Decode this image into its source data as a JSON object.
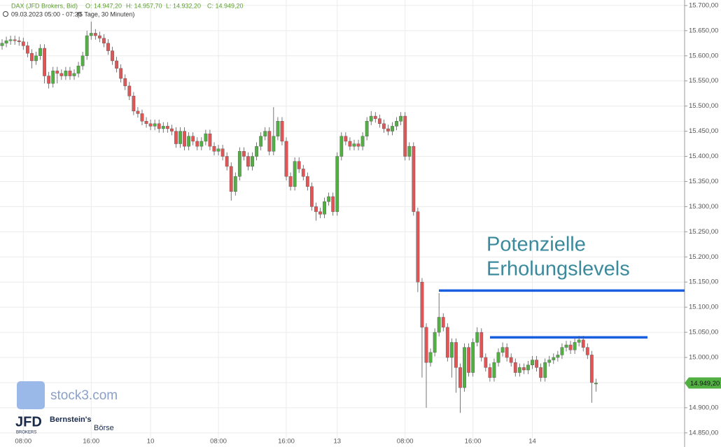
{
  "chart_data": {
    "type": "candlestick",
    "title": "DAX (JFD Brokers, Bid)",
    "ohlc_labels": [
      "O: 14.947,20",
      "H: 14.957,70",
      "L: 14.932,20",
      "C: 14.949,20"
    ],
    "subtitle": "09.03.2023 05:00 - 07:30",
    "period": "(5 Tage, 30 Minuten)",
    "categories": [
      null,
      null,
      null,
      null,
      null,
      "08:00",
      null,
      null,
      null,
      null,
      null,
      null,
      null,
      null,
      null,
      null,
      null,
      null,
      null,
      null,
      null,
      "16:00",
      null,
      null,
      null,
      null,
      null,
      null,
      null,
      null,
      null,
      null,
      null,
      null,
      null,
      "10",
      null,
      null,
      null,
      null,
      null,
      null,
      null,
      null,
      null,
      null,
      null,
      null,
      null,
      null,
      null,
      "08:00",
      null,
      null,
      null,
      null,
      null,
      null,
      null,
      null,
      null,
      null,
      null,
      null,
      null,
      null,
      null,
      "16:00",
      null,
      null,
      null,
      null,
      null,
      null,
      null,
      null,
      null,
      null,
      null,
      "13",
      null,
      null,
      null,
      null,
      null,
      null,
      null,
      null,
      null,
      null,
      null,
      null,
      null,
      null,
      null,
      "08:00",
      null,
      null,
      null,
      null,
      null,
      null,
      null,
      null,
      null,
      null,
      null,
      null,
      null,
      null,
      null,
      "16:00",
      null,
      null,
      null,
      null,
      null,
      null,
      null,
      null,
      null,
      null,
      null,
      null,
      null,
      "14",
      null,
      null,
      null,
      null,
      null,
      null,
      null,
      null,
      null,
      null,
      null,
      null,
      null,
      null,
      null
    ],
    "open": [
      15620,
      15625,
      15630,
      15632,
      15630,
      15628,
      15620,
      15605,
      15590,
      15600,
      15615,
      15560,
      15545,
      15570,
      15565,
      15560,
      15570,
      15560,
      15565,
      15580,
      15600,
      15640,
      15645,
      15640,
      15635,
      15625,
      15610,
      15590,
      15575,
      15555,
      15540,
      15520,
      15490,
      15485,
      15470,
      15465,
      15460,
      15465,
      15455,
      15460,
      15455,
      15450,
      15425,
      15450,
      15420,
      15440,
      15430,
      15420,
      15430,
      15445,
      15420,
      15410,
      15415,
      15400,
      15380,
      15330,
      15360,
      15410,
      15400,
      15380,
      15400,
      15420,
      15440,
      15450,
      15410,
      15440,
      15470,
      15430,
      15360,
      15340,
      15390,
      15375,
      15360,
      15340,
      15300,
      15290,
      15285,
      15310,
      15320,
      15290,
      15400,
      15440,
      15430,
      15420,
      15425,
      15420,
      15440,
      15470,
      15480,
      15475,
      15465,
      15455,
      15450,
      15460,
      15470,
      15480,
      15400,
      15420,
      15290,
      15150,
      15060,
      14990,
      15010,
      15050,
      15080,
      15060,
      15000,
      15030,
      14980,
      14940,
      15020,
      14970,
      15030,
      15050,
      15000,
      14980,
      14960,
      14990,
      15010,
      15020,
      15000,
      14990,
      14970,
      14980,
      14975,
      14985,
      14995,
      14980,
      14960,
      14990,
      14995,
      15000,
      15005,
      15020,
      15025,
      15015,
      15030,
      15035,
      15020,
      15005,
      14947.2
    ],
    "high": [
      15633,
      15638,
      15640,
      15640,
      15638,
      15636,
      15628,
      15613,
      15608,
      15623,
      15623,
      15568,
      15578,
      15578,
      15573,
      15578,
      15578,
      15573,
      15588,
      15608,
      15650,
      15668,
      15653,
      15648,
      15643,
      15633,
      15618,
      15598,
      15583,
      15563,
      15548,
      15528,
      15498,
      15493,
      15478,
      15473,
      15473,
      15473,
      15468,
      15468,
      15463,
      15458,
      15458,
      15458,
      15448,
      15448,
      15438,
      15438,
      15453,
      15453,
      15428,
      15423,
      15423,
      15408,
      15388,
      15368,
      15418,
      15418,
      15408,
      15408,
      15428,
      15448,
      15458,
      15458,
      15498,
      15478,
      15478,
      15438,
      15368,
      15398,
      15398,
      15383,
      15368,
      15348,
      15308,
      15298,
      15318,
      15328,
      15328,
      15408,
      15448,
      15448,
      15438,
      15433,
      15433,
      15448,
      15478,
      15490,
      15488,
      15483,
      15473,
      15463,
      15468,
      15478,
      15488,
      15488,
      15428,
      15428,
      15298,
      15158,
      15068,
      15018,
      15058,
      15128,
      15088,
      15068,
      15038,
      15038,
      14988,
      15028,
      15028,
      15038,
      15060,
      15058,
      15008,
      14988,
      14998,
      15018,
      15030,
      15028,
      15008,
      14998,
      14988,
      14988,
      14993,
      15003,
      15003,
      14988,
      14998,
      15003,
      15008,
      15013,
      15028,
      15033,
      15033,
      15038,
      15043,
      15043,
      15028,
      15013,
      14957.7
    ],
    "low": [
      15612,
      15617,
      15622,
      15622,
      15620,
      15612,
      15597,
      15575,
      15582,
      15592,
      15545,
      15535,
      15537,
      15545,
      15552,
      15552,
      15552,
      15552,
      15557,
      15572,
      15592,
      15632,
      15632,
      15627,
      15617,
      15602,
      15582,
      15567,
      15547,
      15532,
      15512,
      15482,
      15477,
      15462,
      15457,
      15452,
      15452,
      15447,
      15447,
      15447,
      15442,
      15417,
      15417,
      15412,
      15412,
      15422,
      15412,
      15412,
      15422,
      15412,
      15402,
      15402,
      15392,
      15372,
      15312,
      15322,
      15352,
      15392,
      15372,
      15372,
      15392,
      15412,
      15432,
      15402,
      15402,
      15432,
      15422,
      15352,
      15332,
      15332,
      15367,
      15352,
      15332,
      15292,
      15272,
      15277,
      15277,
      15302,
      15282,
      15282,
      15392,
      15422,
      15412,
      15412,
      15412,
      15412,
      15432,
      15462,
      15467,
      15457,
      15447,
      15442,
      15442,
      15452,
      15462,
      15392,
      15392,
      15282,
      15130,
      14960,
      14900,
      14982,
      15002,
      15042,
      15052,
      14992,
      14960,
      14930,
      14890,
      14932,
      14962,
      14962,
      15022,
      14992,
      14972,
      14952,
      14952,
      14982,
      15002,
      14992,
      14982,
      14962,
      14962,
      14967,
      14967,
      14977,
      14972,
      14952,
      14952,
      14982,
      14987,
      14992,
      14997,
      15012,
      15007,
      15007,
      15022,
      15012,
      14997,
      14910,
      14932.2
    ],
    "close": [
      15625,
      15630,
      15632,
      15630,
      15628,
      15620,
      15605,
      15590,
      15600,
      15615,
      15560,
      15545,
      15570,
      15565,
      15560,
      15570,
      15560,
      15565,
      15580,
      15600,
      15640,
      15645,
      15640,
      15635,
      15625,
      15610,
      15590,
      15575,
      15555,
      15540,
      15520,
      15490,
      15485,
      15470,
      15465,
      15460,
      15465,
      15455,
      15460,
      15455,
      15450,
      15425,
      15450,
      15420,
      15440,
      15430,
      15420,
      15430,
      15445,
      15420,
      15410,
      15415,
      15400,
      15380,
      15330,
      15360,
      15410,
      15400,
      15380,
      15400,
      15420,
      15440,
      15450,
      15410,
      15440,
      15470,
      15430,
      15360,
      15340,
      15390,
      15375,
      15360,
      15340,
      15300,
      15290,
      15285,
      15310,
      15320,
      15290,
      15400,
      15440,
      15430,
      15420,
      15425,
      15420,
      15440,
      15470,
      15480,
      15475,
      15465,
      15455,
      15450,
      15460,
      15470,
      15480,
      15400,
      15420,
      15290,
      15150,
      15060,
      14990,
      15010,
      15050,
      15080,
      15060,
      15000,
      15030,
      14980,
      14940,
      15020,
      14970,
      15030,
      15050,
      15000,
      14980,
      14960,
      14990,
      15010,
      15020,
      15000,
      14990,
      14970,
      14980,
      14975,
      14985,
      14995,
      14980,
      14960,
      14990,
      14995,
      15000,
      15005,
      15020,
      15025,
      15015,
      15030,
      15035,
      15020,
      15005,
      14950,
      14949.2
    ],
    "up_color": "#52b043",
    "down_color": "#e05555",
    "ylim": [
      14840,
      15711
    ],
    "yticks": [
      {
        "value": 15700,
        "label": "15.700,00"
      },
      {
        "value": 15650,
        "label": "15.650,00"
      },
      {
        "value": 15600,
        "label": "15.600,00"
      },
      {
        "value": 15550,
        "label": "15.550,00"
      },
      {
        "value": 15500,
        "label": "15.500,00"
      },
      {
        "value": 15450,
        "label": "15.450,00"
      },
      {
        "value": 15400,
        "label": "15.400,00"
      },
      {
        "value": 15350,
        "label": "15.350,00"
      },
      {
        "value": 15300,
        "label": "15.300,00"
      },
      {
        "value": 15250,
        "label": "15.250,00"
      },
      {
        "value": 15200,
        "label": "15.200,00"
      },
      {
        "value": 15150,
        "label": "15.150,00"
      },
      {
        "value": 15100,
        "label": "15.100,00"
      },
      {
        "value": 15050,
        "label": "15.050,00"
      },
      {
        "value": 15000,
        "label": "15.000,00"
      },
      {
        "value": 14950,
        "label": "14.950,00"
      },
      {
        "value": 14900,
        "label": "14.900,00"
      },
      {
        "value": 14850,
        "label": "14.850,00"
      }
    ],
    "grid": true,
    "last_price": {
      "value": 14949.2,
      "label": "14.949,20"
    },
    "annotation": [
      "Potenzielle",
      "Erholungslevels"
    ],
    "levels": [
      15133,
      15040
    ],
    "level_color": "#1a5fe0",
    "watermark": "stock3.com",
    "logos": [
      "JFD",
      "BROKERS",
      "Bernstein's",
      "Börse"
    ]
  }
}
